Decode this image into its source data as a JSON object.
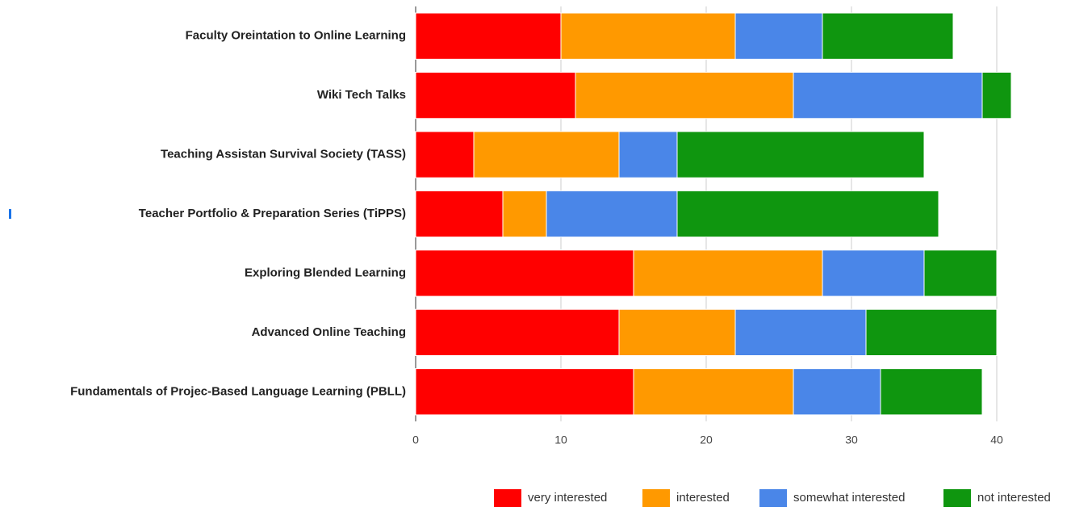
{
  "chart_data": {
    "type": "bar",
    "orientation": "horizontal",
    "stacked": true,
    "categories": [
      "Faculty Oreintation to Online Learning",
      "Wiki Tech Talks",
      "Teaching Assistan Survival Society (TASS)",
      "Teacher Portfolio & Preparation Series (TiPPS)",
      "Exploring Blended Learning",
      "Advanced Online Teaching",
      "Fundamentals of Projec-Based Language Learning (PBLL)"
    ],
    "series": [
      {
        "name": "very interested",
        "color": "#ff0000",
        "values": [
          10,
          11,
          4,
          6,
          15,
          14,
          15
        ]
      },
      {
        "name": "interested",
        "color": "#ff9900",
        "values": [
          12,
          15,
          10,
          3,
          13,
          8,
          11
        ]
      },
      {
        "name": "somewhat interested",
        "color": "#4a86e8",
        "values": [
          6,
          13,
          4,
          9,
          7,
          9,
          6
        ]
      },
      {
        "name": "not interested",
        "color": "#0f960f",
        "values": [
          9,
          2,
          17,
          18,
          5,
          9,
          7
        ]
      }
    ],
    "xlim": [
      0,
      42
    ],
    "xticks": [
      0,
      10,
      20,
      30,
      40
    ],
    "grid": true,
    "legend": "bottom"
  }
}
